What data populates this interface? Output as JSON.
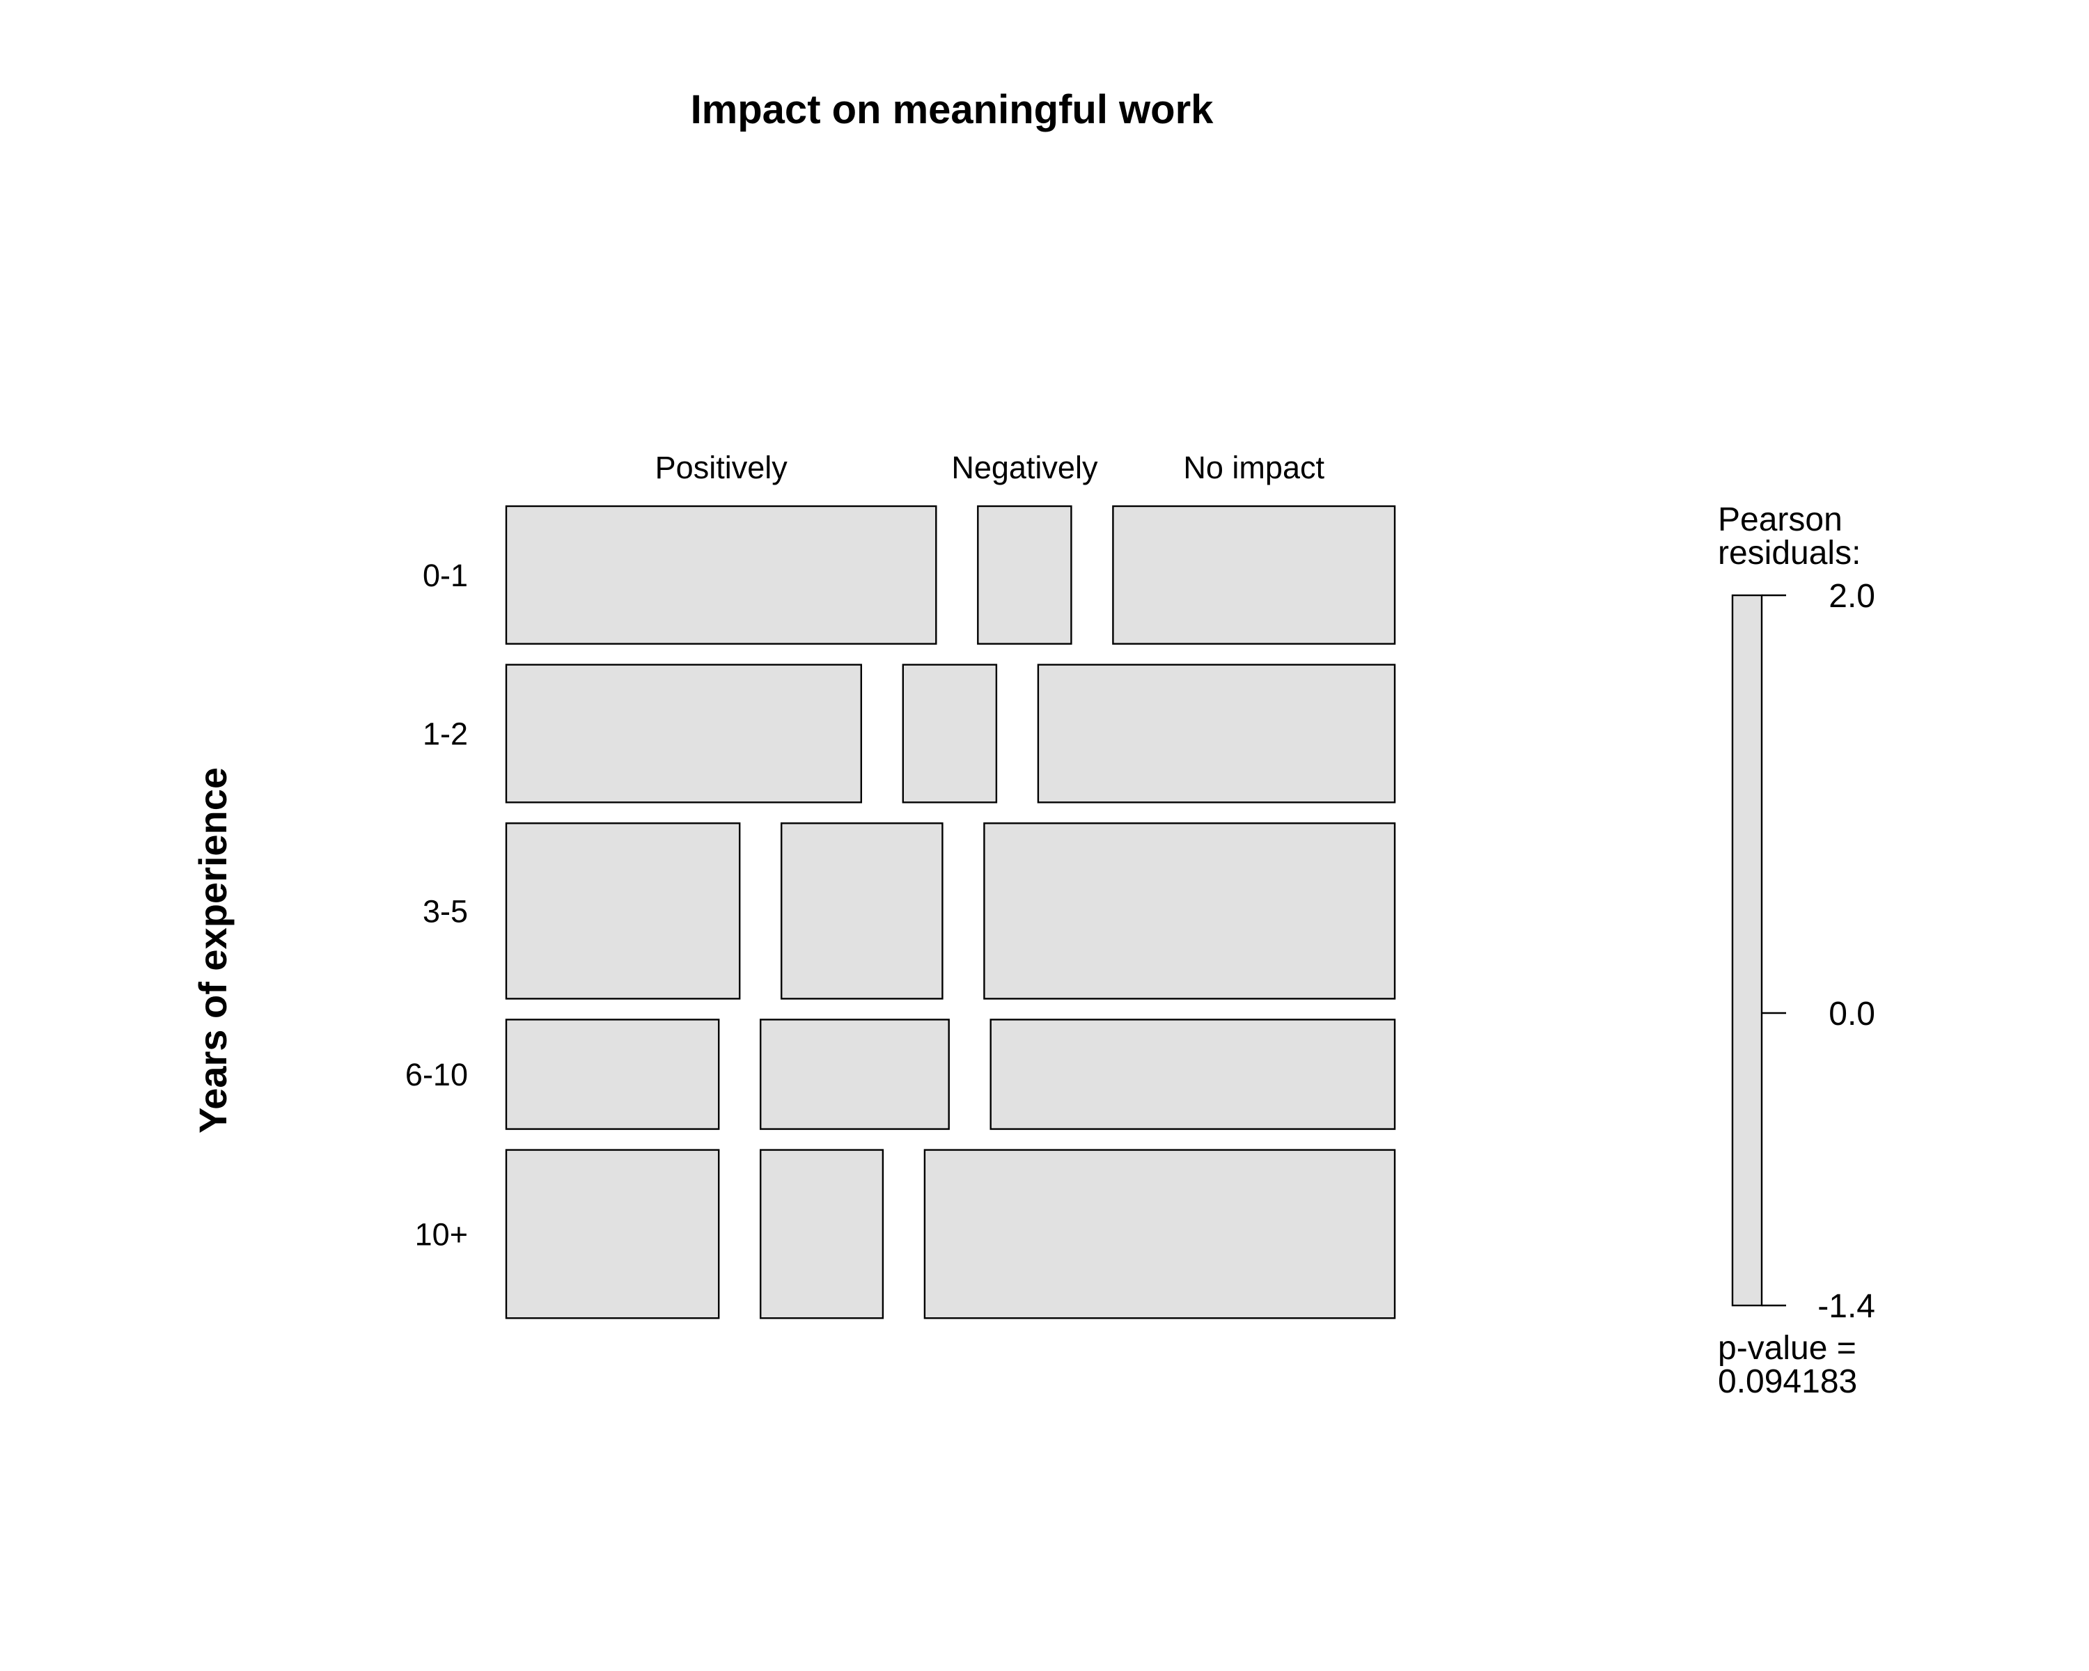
{
  "chart_data": {
    "type": "mosaic",
    "title": "Impact on meaningful work",
    "ylabel": "Years of experience",
    "columns": [
      "Positively",
      "Negatively",
      "No impact"
    ],
    "rows": [
      {
        "label": "0-1",
        "row_share": 0.171,
        "col_shares": [
          0.534,
          0.116,
          0.35
        ]
      },
      {
        "label": "1-2",
        "row_share": 0.171,
        "col_shares": [
          0.441,
          0.116,
          0.443
        ]
      },
      {
        "label": "3-5",
        "row_share": 0.218,
        "col_shares": [
          0.29,
          0.2,
          0.51
        ]
      },
      {
        "label": "6-10",
        "row_share": 0.136,
        "col_shares": [
          0.264,
          0.234,
          0.502
        ]
      },
      {
        "label": "10+",
        "row_share": 0.209,
        "col_shares": [
          0.264,
          0.152,
          0.584
        ]
      }
    ],
    "legend": {
      "title_line1": "Pearson",
      "title_line2": "residuals:",
      "ticks": [
        "2.0",
        "0.0",
        "-1.4"
      ],
      "tick_values": [
        2.0,
        0.0,
        -1.4
      ],
      "range": [
        -1.4,
        2.0
      ],
      "pvalue_line1": "p-value =",
      "pvalue_line2": "0.094183",
      "fill_color": "#e1e1e1"
    }
  }
}
